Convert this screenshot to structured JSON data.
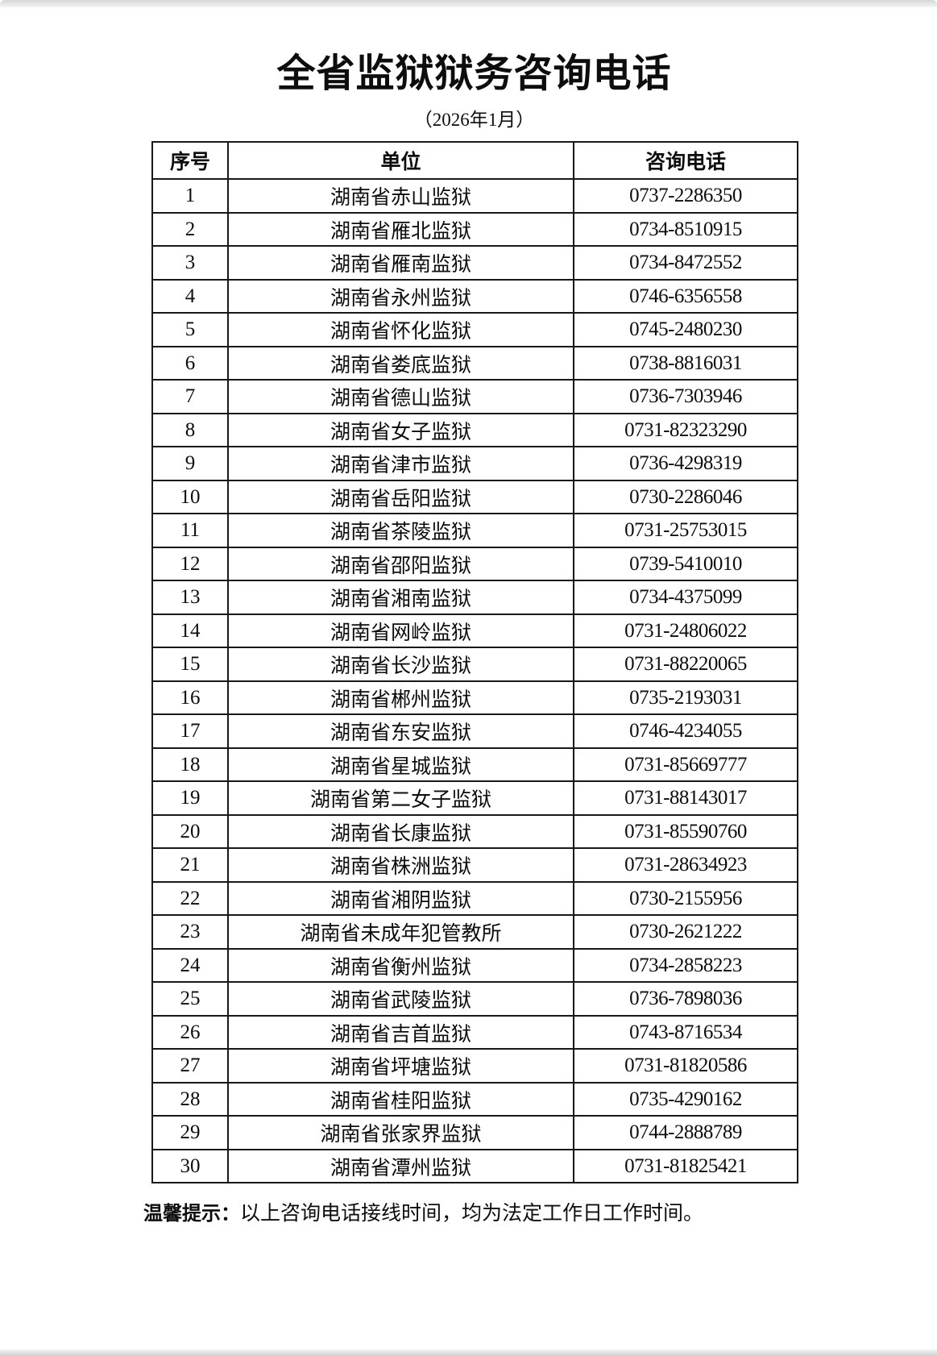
{
  "document": {
    "title": "全省监狱狱务咨询电话",
    "subtitle": "（2026年1月）",
    "note_label": "温馨提示：",
    "note_text": "以上咨询电话接线时间，均为法定工作日工作时间。"
  },
  "table": {
    "headers": [
      "序号",
      "单位",
      "咨询电话"
    ],
    "rows": [
      {
        "no": "1",
        "unit": "湖南省赤山监狱",
        "phone": "0737-2286350"
      },
      {
        "no": "2",
        "unit": "湖南省雁北监狱",
        "phone": "0734-8510915"
      },
      {
        "no": "3",
        "unit": "湖南省雁南监狱",
        "phone": "0734-8472552"
      },
      {
        "no": "4",
        "unit": "湖南省永州监狱",
        "phone": "0746-6356558"
      },
      {
        "no": "5",
        "unit": "湖南省怀化监狱",
        "phone": "0745-2480230"
      },
      {
        "no": "6",
        "unit": "湖南省娄底监狱",
        "phone": "0738-8816031"
      },
      {
        "no": "7",
        "unit": "湖南省德山监狱",
        "phone": "0736-7303946"
      },
      {
        "no": "8",
        "unit": "湖南省女子监狱",
        "phone": "0731-82323290"
      },
      {
        "no": "9",
        "unit": "湖南省津市监狱",
        "phone": "0736-4298319"
      },
      {
        "no": "10",
        "unit": "湖南省岳阳监狱",
        "phone": "0730-2286046"
      },
      {
        "no": "11",
        "unit": "湖南省茶陵监狱",
        "phone": "0731-25753015"
      },
      {
        "no": "12",
        "unit": "湖南省邵阳监狱",
        "phone": "0739-5410010"
      },
      {
        "no": "13",
        "unit": "湖南省湘南监狱",
        "phone": "0734-4375099"
      },
      {
        "no": "14",
        "unit": "湖南省网岭监狱",
        "phone": "0731-24806022"
      },
      {
        "no": "15",
        "unit": "湖南省长沙监狱",
        "phone": "0731-88220065"
      },
      {
        "no": "16",
        "unit": "湖南省郴州监狱",
        "phone": "0735-2193031"
      },
      {
        "no": "17",
        "unit": "湖南省东安监狱",
        "phone": "0746-4234055"
      },
      {
        "no": "18",
        "unit": "湖南省星城监狱",
        "phone": "0731-85669777"
      },
      {
        "no": "19",
        "unit": "湖南省第二女子监狱",
        "phone": "0731-88143017"
      },
      {
        "no": "20",
        "unit": "湖南省长康监狱",
        "phone": "0731-85590760"
      },
      {
        "no": "21",
        "unit": "湖南省株洲监狱",
        "phone": "0731-28634923"
      },
      {
        "no": "22",
        "unit": "湖南省湘阴监狱",
        "phone": "0730-2155956"
      },
      {
        "no": "23",
        "unit": "湖南省未成年犯管教所",
        "phone": "0730-2621222"
      },
      {
        "no": "24",
        "unit": "湖南省衡州监狱",
        "phone": "0734-2858223"
      },
      {
        "no": "25",
        "unit": "湖南省武陵监狱",
        "phone": "0736-7898036"
      },
      {
        "no": "26",
        "unit": "湖南省吉首监狱",
        "phone": "0743-8716534"
      },
      {
        "no": "27",
        "unit": "湖南省坪塘监狱",
        "phone": "0731-81820586"
      },
      {
        "no": "28",
        "unit": "湖南省桂阳监狱",
        "phone": "0735-4290162"
      },
      {
        "no": "29",
        "unit": "湖南省张家界监狱",
        "phone": "0744-2888789"
      },
      {
        "no": "30",
        "unit": "湖南省潭州监狱",
        "phone": "0731-81825421"
      }
    ]
  }
}
